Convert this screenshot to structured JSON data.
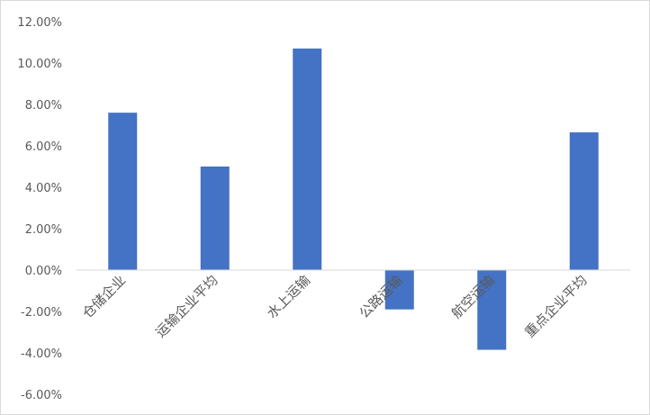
{
  "chart_data": {
    "type": "bar",
    "title": "",
    "xlabel": "",
    "ylabel": "",
    "categories": [
      "仓储企业",
      "运输企业平均",
      "水上运输",
      "公路运输",
      "航空运输",
      "重点企业平均"
    ],
    "values": [
      7.6,
      5.0,
      10.7,
      -1.9,
      -3.85,
      6.65
    ],
    "value_unit": "%",
    "ylim": [
      -6,
      12
    ],
    "yticks": [
      -6,
      -4,
      -2,
      0,
      2,
      4,
      6,
      8,
      10,
      12
    ],
    "ytick_labels": [
      "-6.00%",
      "-4.00%",
      "-2.00%",
      "0.00%",
      "2.00%",
      "4.00%",
      "6.00%",
      "8.00%",
      "10.00%",
      "12.00%"
    ],
    "grid": false,
    "legend": "none",
    "bar_color": "#4472C4",
    "axis_color": "#D9D9D9",
    "label_color": "#595959"
  }
}
